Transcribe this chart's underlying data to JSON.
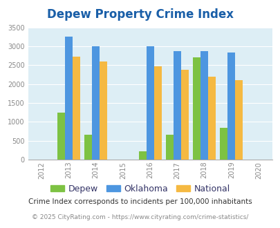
{
  "title": "Depew Property Crime Index",
  "years": [
    2012,
    2013,
    2014,
    2015,
    2016,
    2017,
    2018,
    2019,
    2020
  ],
  "data_years": [
    2013,
    2014,
    2016,
    2017,
    2018,
    2019
  ],
  "depew": [
    1250,
    650,
    220,
    650,
    2700,
    850
  ],
  "oklahoma": [
    3250,
    3000,
    3000,
    2880,
    2880,
    2830
  ],
  "national": [
    2720,
    2590,
    2470,
    2380,
    2200,
    2110
  ],
  "bar_colors": {
    "depew": "#7dc243",
    "oklahoma": "#4d96e0",
    "national": "#f5b942"
  },
  "ylim": [
    0,
    3500
  ],
  "yticks": [
    0,
    500,
    1000,
    1500,
    2000,
    2500,
    3000,
    3500
  ],
  "xlim": [
    2011.5,
    2020.5
  ],
  "bar_width": 0.28,
  "background_color": "#ddeef5",
  "title_color": "#1a5fa8",
  "title_fontsize": 12,
  "legend_labels": [
    "Depew",
    "Oklahoma",
    "National"
  ],
  "legend_text_color": "#333366",
  "footnote1": "Crime Index corresponds to incidents per 100,000 inhabitants",
  "footnote2": "© 2025 CityRating.com - https://www.cityrating.com/crime-statistics/",
  "tick_color": "#888888",
  "grid_color": "#ffffff",
  "ytick_fontsize": 7,
  "xtick_fontsize": 7
}
